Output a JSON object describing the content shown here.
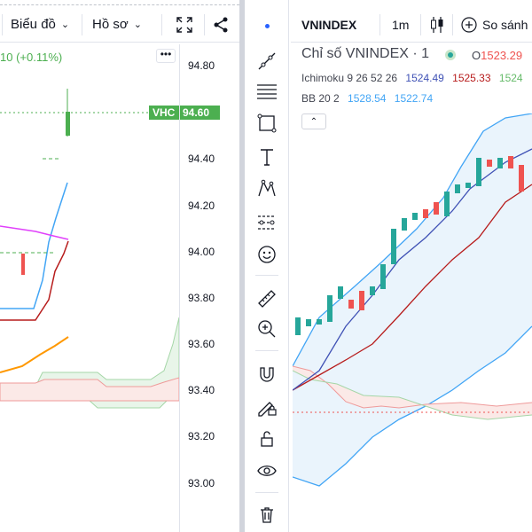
{
  "left": {
    "toolbar": {
      "chart_label": "Biểu đồ",
      "profile_label": "Hồ sơ"
    },
    "change_text": "10 (+0.11%)",
    "price_tag": {
      "symbol": "VHC",
      "price": "94.60"
    },
    "price_axis": [
      "94.80",
      "94.40",
      "94.20",
      "94.00",
      "93.80",
      "93.60",
      "93.40",
      "93.20",
      "93.00"
    ],
    "colors": {
      "up": "#26a69a",
      "up_bright": "#4caf50",
      "down": "#ef5350",
      "band": "#42a5f5",
      "ma": "#e040fb",
      "base": "#b71c1c",
      "orange": "#ff9800"
    }
  },
  "right": {
    "header": {
      "symbol": "VNINDEX",
      "interval": "1m",
      "compare_label": "So sánh"
    },
    "title": {
      "name": "Chỉ số VNINDEX",
      "interval": "1",
      "open_label": "O",
      "open_value": "1523.29"
    },
    "ichimoku": {
      "label": "Ichimoku 9 26 52 26",
      "v1": "1524.49",
      "v2": "1525.33",
      "v3": "1524"
    },
    "bb": {
      "label": "BB 20 2",
      "v1": "1528.54",
      "v2": "1522.74"
    },
    "tools": [
      "crosshair-icon",
      "trendline-icon",
      "fib-icon",
      "rectangle-icon",
      "text-icon",
      "pattern-icon",
      "forecast-icon",
      "emoji-icon",
      "ruler-icon",
      "zoom-icon",
      "magnet-icon",
      "lock-drawing-icon",
      "lock-icon",
      "eye-icon",
      "trash-icon"
    ]
  }
}
